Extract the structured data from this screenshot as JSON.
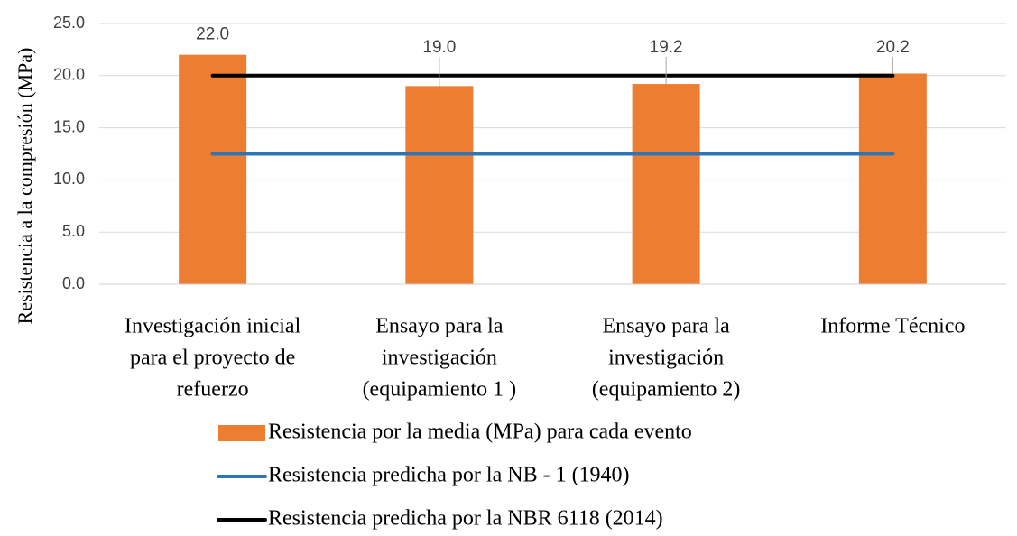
{
  "chart_data": {
    "type": "bar",
    "ylabel": "Resistencia a la compresión (MPa)",
    "ylim": [
      0,
      25
    ],
    "yticks": [
      "0.0",
      "5.0",
      "10.0",
      "15.0",
      "20.0",
      "25.0"
    ],
    "grid": true,
    "legend_position": "bottom",
    "categories": [
      [
        "Investigación inicial",
        "para el proyecto de",
        "refuerzo"
      ],
      [
        "Ensayo para la",
        "investigación",
        "(equipamiento 1 )"
      ],
      [
        "Ensayo para la",
        "investigación",
        "(equipamiento 2)"
      ],
      [
        "Informe Técnico"
      ]
    ],
    "series": [
      {
        "name": "Resistencia por la media (MPa) para cada evento",
        "kind": "bar",
        "color": "#ED7D31",
        "values": [
          22.0,
          19.0,
          19.2,
          20.2
        ],
        "data_labels": [
          "22.0",
          "19.0",
          "19.2",
          "20.2"
        ]
      },
      {
        "name": "Resistencia predicha por la  NB - 1 (1940)",
        "kind": "line",
        "color": "#2E75B6",
        "values": [
          12.5,
          12.5,
          12.5,
          12.5
        ]
      },
      {
        "name": "Resistencia predicha por la NBR 6118 (2014)",
        "kind": "line",
        "color": "#000000",
        "values": [
          20.0,
          20.0,
          20.0,
          20.0
        ]
      }
    ]
  }
}
